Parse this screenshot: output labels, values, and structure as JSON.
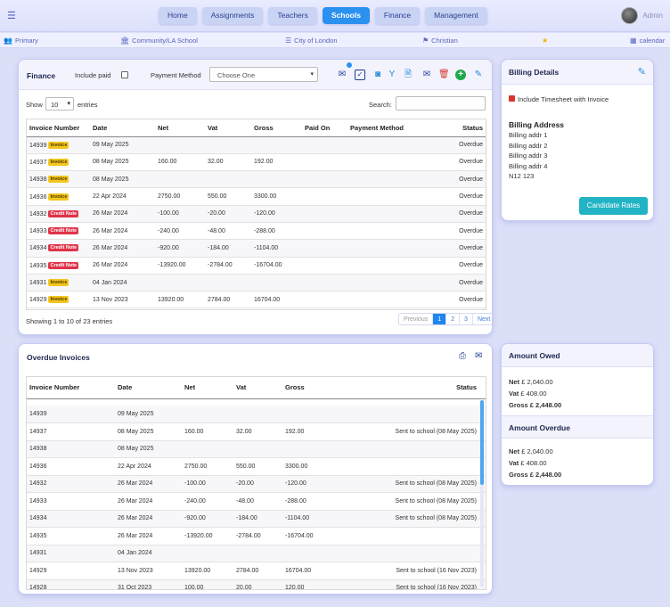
{
  "nav": {
    "tabs": [
      {
        "label": "Home"
      },
      {
        "label": "Assignments"
      },
      {
        "label": "Teachers"
      },
      {
        "label": "Schools"
      },
      {
        "label": "Finance"
      },
      {
        "label": "Management"
      }
    ],
    "user": "Admin"
  },
  "info": {
    "primary": "Primary",
    "school": "Community/LA School",
    "city": "City of London",
    "religion": "Christian",
    "calendar": "calendar"
  },
  "finance": {
    "title": "Finance",
    "include_paid": "Include paid",
    "payment_method_label": "Payment Method",
    "payment_method_value": "Choose One",
    "show": "Show",
    "entries_value": "10",
    "entries": "entries",
    "search_label": "Search:",
    "columns": [
      "Invoice Number",
      "Date",
      "Net",
      "Vat",
      "Gross",
      "Paid On",
      "Payment Method",
      "Status"
    ],
    "rows": [
      {
        "num": "14939",
        "badge": "Invoice",
        "type": "inv",
        "date": "09 May 2025",
        "net": "",
        "vat": "",
        "gross": "",
        "paid": "",
        "method": "",
        "status": "Overdue"
      },
      {
        "num": "14937",
        "badge": "Invoice",
        "type": "inv",
        "date": "08 May 2025",
        "net": "160.00",
        "vat": "32.00",
        "gross": "192.00",
        "paid": "",
        "method": "",
        "status": "Overdue"
      },
      {
        "num": "14938",
        "badge": "Invoice",
        "type": "inv",
        "date": "08 May 2025",
        "net": "",
        "vat": "",
        "gross": "",
        "paid": "",
        "method": "",
        "status": "Overdue"
      },
      {
        "num": "14936",
        "badge": "Invoice",
        "type": "inv",
        "date": "22 Apr 2024",
        "net": "2750.00",
        "vat": "550.00",
        "gross": "3300.00",
        "paid": "",
        "method": "",
        "status": "Overdue"
      },
      {
        "num": "14932",
        "badge": "Credit Note",
        "type": "cn",
        "date": "26 Mar 2024",
        "net": "-100.00",
        "vat": "-20.00",
        "gross": "-120.00",
        "paid": "",
        "method": "",
        "status": "Overdue"
      },
      {
        "num": "14933",
        "badge": "Credit Note",
        "type": "cn",
        "date": "26 Mar 2024",
        "net": "-240.00",
        "vat": "-48.00",
        "gross": "-288.00",
        "paid": "",
        "method": "",
        "status": "Overdue"
      },
      {
        "num": "14934",
        "badge": "Credit Note",
        "type": "cn",
        "date": "26 Mar 2024",
        "net": "-920.00",
        "vat": "-184.00",
        "gross": "-1104.00",
        "paid": "",
        "method": "",
        "status": "Overdue"
      },
      {
        "num": "14935",
        "badge": "Credit Note",
        "type": "cn",
        "date": "26 Mar 2024",
        "net": "-13920.00",
        "vat": "-2784.00",
        "gross": "-16704.00",
        "paid": "",
        "method": "",
        "status": "Overdue"
      },
      {
        "num": "14931",
        "badge": "Invoice",
        "type": "inv",
        "date": "04 Jan 2024",
        "net": "",
        "vat": "",
        "gross": "",
        "paid": "",
        "method": "",
        "status": "Overdue"
      },
      {
        "num": "14929",
        "badge": "Invoice",
        "type": "inv",
        "date": "13 Nov 2023",
        "net": "13920.00",
        "vat": "2784.00",
        "gross": "16704.00",
        "paid": "",
        "method": "",
        "status": "Overdue"
      }
    ],
    "showing": "Showing 1 to 10 of 23 entries",
    "pager": [
      "Previous",
      "1",
      "2",
      "3",
      "Next"
    ]
  },
  "billing": {
    "title": "Billing Details",
    "timesheet_label": "Include Timesheet with Invoice",
    "address_title": "Billing Address",
    "address": [
      "Billing addr 1",
      "Billing addr 2",
      "Billing addr 3",
      "Billing addr 4",
      "N12 123"
    ],
    "rates_button": "Candidate Rates"
  },
  "overdue": {
    "title": "Overdue Invoices",
    "columns": [
      "Invoice Number",
      "Date",
      "Net",
      "Vat",
      "Gross",
      "Status"
    ],
    "rows": [
      {
        "num": "14939",
        "date": "09 May 2025",
        "net": "",
        "vat": "",
        "gross": "",
        "status": ""
      },
      {
        "num": "14937",
        "date": "08 May 2025",
        "net": "160.00",
        "vat": "32.00",
        "gross": "192.00",
        "status": "Sent to school (08 May 2025)"
      },
      {
        "num": "14938",
        "date": "08 May 2025",
        "net": "",
        "vat": "",
        "gross": "",
        "status": ""
      },
      {
        "num": "14936",
        "date": "22 Apr 2024",
        "net": "2750.00",
        "vat": "550.00",
        "gross": "3300.00",
        "status": ""
      },
      {
        "num": "14932",
        "date": "26 Mar 2024",
        "net": "-100.00",
        "vat": "-20.00",
        "gross": "-120.00",
        "status": "Sent to school (08 May 2025)"
      },
      {
        "num": "14933",
        "date": "26 Mar 2024",
        "net": "-240.00",
        "vat": "-48.00",
        "gross": "-288.00",
        "status": "Sent to school (08 May 2025)"
      },
      {
        "num": "14934",
        "date": "26 Mar 2024",
        "net": "-920.00",
        "vat": "-184.00",
        "gross": "-1104.00",
        "status": "Sent to school (08 May 2025)"
      },
      {
        "num": "14935",
        "date": "26 Mar 2024",
        "net": "-13920.00",
        "vat": "-2784.00",
        "gross": "-16704.00",
        "status": ""
      },
      {
        "num": "14931",
        "date": "04 Jan 2024",
        "net": "",
        "vat": "",
        "gross": "",
        "status": ""
      },
      {
        "num": "14929",
        "date": "13 Nov 2023",
        "net": "13920.00",
        "vat": "2784.00",
        "gross": "16704.00",
        "status": "Sent to school (16 Nov 2023)"
      },
      {
        "num": "14928",
        "date": "31 Oct 2023",
        "net": "100.00",
        "vat": "20.00",
        "gross": "120.00",
        "status": "Sent to school (16 Nov 2023)"
      }
    ]
  },
  "owed": {
    "title": "Amount Owed",
    "net_label": "Net",
    "net": "£ 2,040.00",
    "vat_label": "Vat",
    "vat": "£ 408.00",
    "gross_label": "Gross",
    "gross": "£ 2,448.00",
    "overdue_title": "Amount Overdue",
    "o_net": "£ 2,040.00",
    "o_vat": "£ 408.00",
    "o_gross": "£ 2,448.00"
  }
}
